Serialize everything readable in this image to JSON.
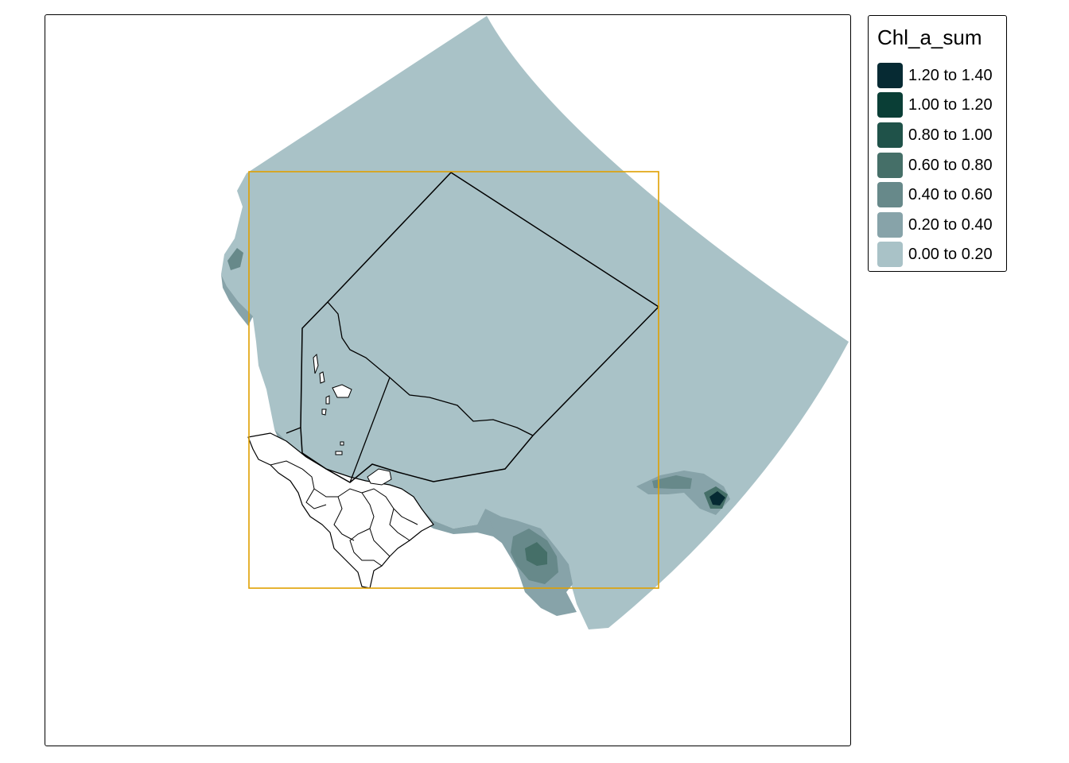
{
  "legend": {
    "title": "Chl_a_sum",
    "items": [
      {
        "label": "1.20 to 1.40",
        "color": "#062a33"
      },
      {
        "label": "1.00 to 1.20",
        "color": "#0a3e36"
      },
      {
        "label": "0.80 to 1.00",
        "color": "#1f5249"
      },
      {
        "label": "0.60 to 0.80",
        "color": "#456f68"
      },
      {
        "label": "0.40 to 0.60",
        "color": "#67898a"
      },
      {
        "label": "0.20 to 0.40",
        "color": "#87a3a9"
      },
      {
        "label": "0.00 to 0.20",
        "color": "#a9c2c7"
      }
    ]
  },
  "map": {
    "bbox_color": "#e0a000",
    "boundary_color": "#000000",
    "land_color": "#ffffff"
  }
}
